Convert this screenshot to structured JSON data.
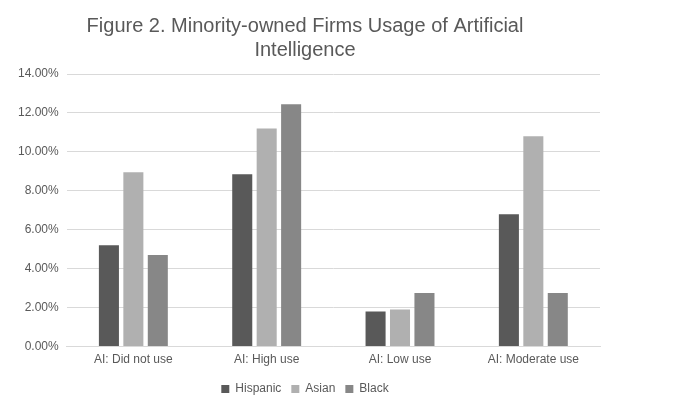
{
  "chart_data": {
    "type": "bar",
    "title": "Figure 2. Minority-owned Firms Usage of Artificial Intelligence",
    "categories": [
      "AI: Did not use",
      "AI: High use",
      "AI: Low use",
      "AI: Moderate use"
    ],
    "series": [
      {
        "name": "Hispanic",
        "color": "#595959",
        "values": [
          5.2,
          8.85,
          1.8,
          6.8
        ]
      },
      {
        "name": "Asian",
        "color": "#b0b0b0",
        "values": [
          8.95,
          11.2,
          1.9,
          10.8
        ]
      },
      {
        "name": "Black",
        "color": "#878787",
        "values": [
          4.7,
          12.45,
          2.75,
          2.75
        ]
      }
    ],
    "ylim": [
      0,
      14
    ],
    "yticks": [
      {
        "value": 0,
        "label": "0.00%"
      },
      {
        "value": 2,
        "label": "2.00%"
      },
      {
        "value": 4,
        "label": "4.00%"
      },
      {
        "value": 6,
        "label": "6.00%"
      },
      {
        "value": 8,
        "label": "8.00%"
      },
      {
        "value": 10,
        "label": "10.00%"
      },
      {
        "value": 12,
        "label": "12.00%"
      },
      {
        "value": 14,
        "label": "14.00%"
      }
    ],
    "grid": true,
    "legend": "bottom"
  }
}
